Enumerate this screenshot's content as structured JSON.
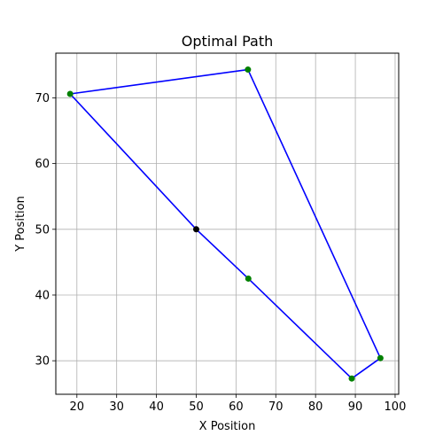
{
  "chart_data": {
    "type": "line",
    "title": "Optimal Path",
    "xlabel": "X Position",
    "ylabel": "Y Position",
    "xlim": [
      14.7,
      100.9
    ],
    "ylim": [
      24.9,
      76.8
    ],
    "xticks": [
      20,
      30,
      40,
      50,
      60,
      70,
      80,
      90,
      100
    ],
    "yticks": [
      30,
      40,
      50,
      60,
      70
    ],
    "grid": true,
    "path": {
      "x": [
        50.0,
        63.1,
        89.1,
        96.3,
        63.0,
        18.3,
        50.0
      ],
      "y": [
        50.0,
        42.5,
        27.3,
        30.4,
        74.3,
        70.6,
        50.0
      ]
    },
    "points": [
      {
        "x": 50.0,
        "y": 50.0,
        "kind": "start"
      },
      {
        "x": 63.1,
        "y": 42.5,
        "kind": "waypoint"
      },
      {
        "x": 89.1,
        "y": 27.3,
        "kind": "waypoint"
      },
      {
        "x": 96.3,
        "y": 30.4,
        "kind": "waypoint"
      },
      {
        "x": 63.0,
        "y": 74.3,
        "kind": "waypoint"
      },
      {
        "x": 18.3,
        "y": 70.6,
        "kind": "waypoint"
      }
    ],
    "colors": {
      "path": "#0000ff",
      "waypoint": "#008000",
      "start": "#000000",
      "grid": "#b0b0b0",
      "axes": "#000000"
    }
  }
}
